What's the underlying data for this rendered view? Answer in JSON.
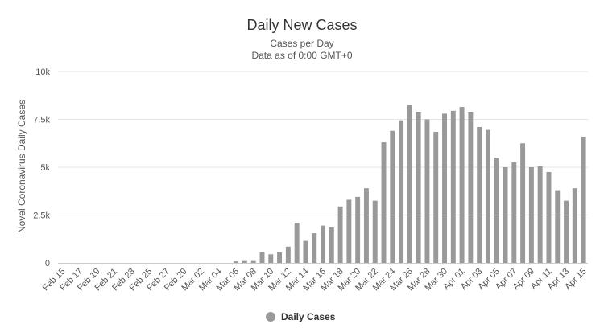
{
  "chart_data": {
    "type": "bar",
    "title": "Daily New Cases",
    "subtitle_lines": [
      "Cases per Day",
      "Data as of 0:00 GMT+0"
    ],
    "ylabel": "Novel Coronavirus Daily Cases",
    "xlabel": "",
    "ylim": [
      0,
      10000
    ],
    "yticks": [
      0,
      2500,
      5000,
      7500,
      10000
    ],
    "ytick_labels": [
      "0",
      "2.5k",
      "5k",
      "7.5k",
      "10k"
    ],
    "grid": "horizontal",
    "legend_position": "bottom-center",
    "bar_color": "#999999",
    "categories": [
      "Feb 15",
      "Feb 16",
      "Feb 17",
      "Feb 18",
      "Feb 19",
      "Feb 20",
      "Feb 21",
      "Feb 22",
      "Feb 23",
      "Feb 24",
      "Feb 25",
      "Feb 26",
      "Feb 27",
      "Feb 28",
      "Feb 29",
      "Mar 01",
      "Mar 02",
      "Mar 03",
      "Mar 04",
      "Mar 05",
      "Mar 06",
      "Mar 07",
      "Mar 08",
      "Mar 09",
      "Mar 10",
      "Mar 11",
      "Mar 12",
      "Mar 13",
      "Mar 14",
      "Mar 15",
      "Mar 16",
      "Mar 17",
      "Mar 18",
      "Mar 19",
      "Mar 20",
      "Mar 21",
      "Mar 22",
      "Mar 23",
      "Mar 24",
      "Mar 25",
      "Mar 26",
      "Mar 27",
      "Mar 28",
      "Mar 29",
      "Mar 30",
      "Mar 31",
      "Apr 01",
      "Apr 02",
      "Apr 03",
      "Apr 04",
      "Apr 05",
      "Apr 06",
      "Apr 07",
      "Apr 08",
      "Apr 09",
      "Apr 10",
      "Apr 11",
      "Apr 12",
      "Apr 13",
      "Apr 14",
      "Apr 15"
    ],
    "tick_labels_shown": [
      "Feb 15",
      "Feb 17",
      "Feb 19",
      "Feb 21",
      "Feb 23",
      "Feb 25",
      "Feb 27",
      "Feb 29",
      "Mar 02",
      "Mar 04",
      "Mar 06",
      "Mar 08",
      "Mar 10",
      "Mar 12",
      "Mar 14",
      "Mar 16",
      "Mar 18",
      "Mar 20",
      "Mar 22",
      "Mar 24",
      "Mar 26",
      "Mar 28",
      "Mar 30",
      "Apr 01",
      "Apr 03",
      "Apr 05",
      "Apr 07",
      "Apr 09",
      "Apr 11",
      "Apr 13",
      "Apr 15"
    ],
    "series": [
      {
        "name": "Daily Cases",
        "values": [
          0,
          0,
          0,
          0,
          0,
          0,
          0,
          0,
          0,
          0,
          0,
          0,
          0,
          0,
          0,
          0,
          0,
          0,
          0,
          0,
          80,
          100,
          100,
          550,
          450,
          550,
          850,
          2100,
          1150,
          1550,
          1950,
          1850,
          2950,
          3300,
          3450,
          3900,
          3250,
          6300,
          6900,
          7450,
          8250,
          7900,
          7500,
          6850,
          7800,
          7950,
          8150,
          7900,
          7100,
          6950,
          5500,
          5000,
          5250,
          6250,
          5000,
          5050,
          4750,
          3800,
          3250,
          3900,
          6600
        ]
      }
    ]
  }
}
